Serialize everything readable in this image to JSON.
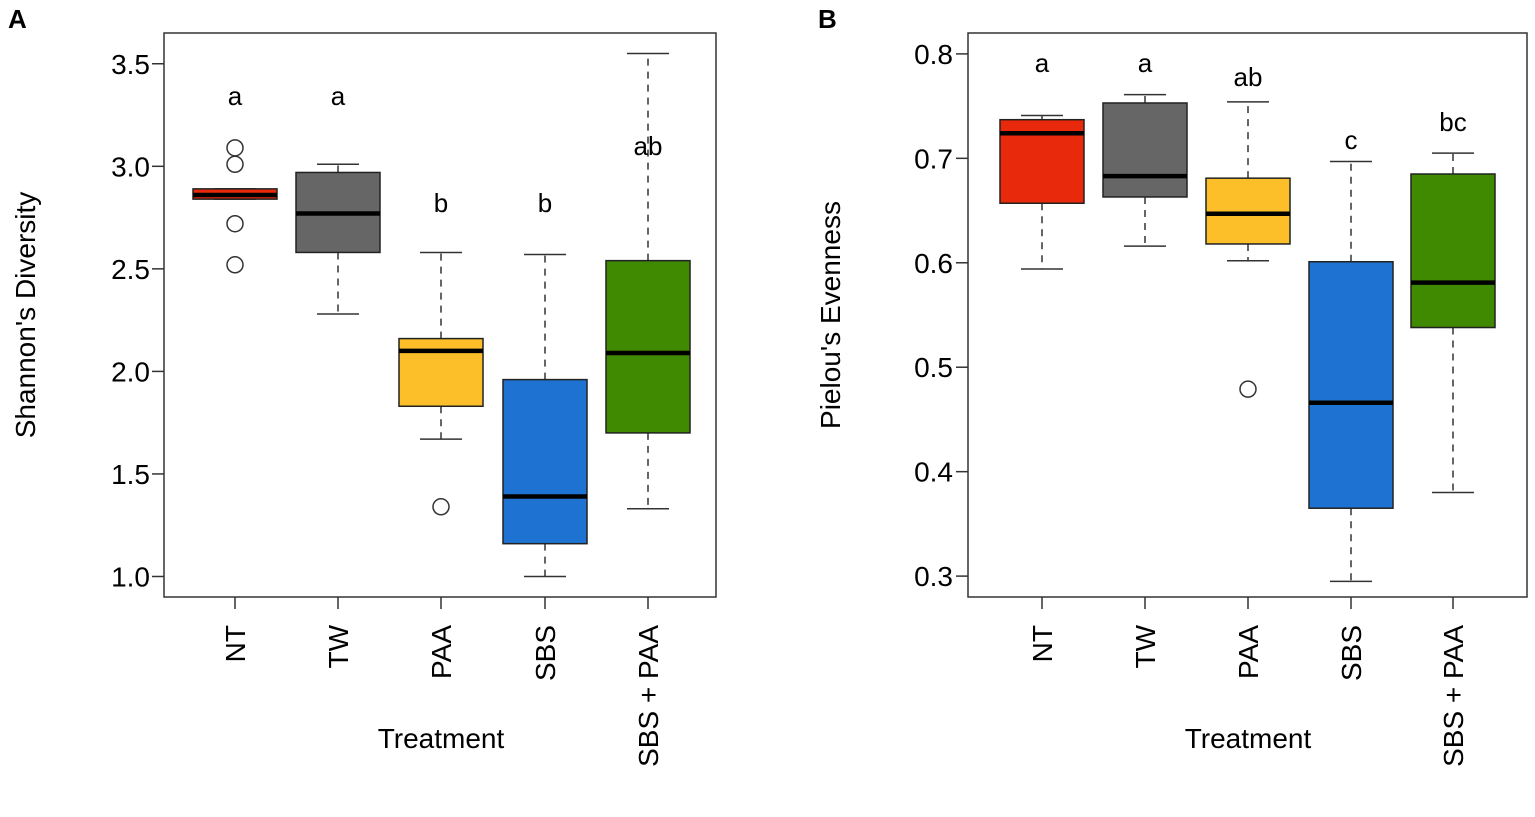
{
  "chart_data": [
    {
      "type": "boxplot",
      "panel_label": "A",
      "xlabel": "Treatment",
      "ylabel": "Shannon's Diversity",
      "ylim": [
        0.9,
        3.65
      ],
      "yticks": [
        "1.0",
        "1.5",
        "2.0",
        "2.5",
        "3.0",
        "3.5"
      ],
      "categories": [
        "NT",
        "TW",
        "PAA",
        "SBS",
        "SBS + PAA"
      ],
      "groups": [
        {
          "name": "NT",
          "color": "#e8290b",
          "whisker_low": 2.84,
          "q1": 2.84,
          "median": 2.86,
          "q3": 2.89,
          "whisker_high": 2.89,
          "outliers": [
            3.09,
            3.01,
            2.72,
            2.52
          ],
          "letter": "a"
        },
        {
          "name": "TW",
          "color": "#666666",
          "whisker_low": 2.28,
          "q1": 2.58,
          "median": 2.77,
          "q3": 2.97,
          "whisker_high": 3.01,
          "outliers": [],
          "letter": "a"
        },
        {
          "name": "PAA",
          "color": "#fcbf2a",
          "whisker_low": 1.67,
          "q1": 1.83,
          "median": 2.1,
          "q3": 2.16,
          "whisker_high": 2.58,
          "outliers": [
            1.34
          ],
          "letter": "b"
        },
        {
          "name": "SBS",
          "color": "#1e73d2",
          "whisker_low": 1.0,
          "q1": 1.16,
          "median": 1.39,
          "q3": 1.96,
          "whisker_high": 2.57,
          "outliers": [],
          "letter": "b"
        },
        {
          "name": "SBS + PAA",
          "color": "#3f8a00",
          "whisker_low": 1.33,
          "q1": 1.7,
          "median": 2.09,
          "q3": 2.54,
          "whisker_high": 3.55,
          "outliers": [],
          "letter": "ab"
        }
      ]
    },
    {
      "type": "boxplot",
      "panel_label": "B",
      "xlabel": "Treatment",
      "ylabel": "Pielou's Evenness",
      "ylim": [
        0.28,
        0.82
      ],
      "yticks": [
        "0.3",
        "0.4",
        "0.5",
        "0.6",
        "0.7",
        "0.8"
      ],
      "categories": [
        "NT",
        "TW",
        "PAA",
        "SBS",
        "SBS + PAA"
      ],
      "groups": [
        {
          "name": "NT",
          "color": "#e8290b",
          "whisker_low": 0.594,
          "q1": 0.657,
          "median": 0.724,
          "q3": 0.737,
          "whisker_high": 0.741,
          "outliers": [],
          "letter": "a"
        },
        {
          "name": "TW",
          "color": "#666666",
          "whisker_low": 0.616,
          "q1": 0.663,
          "median": 0.683,
          "q3": 0.753,
          "whisker_high": 0.761,
          "outliers": [],
          "letter": "a"
        },
        {
          "name": "PAA",
          "color": "#fcbf2a",
          "whisker_low": 0.602,
          "q1": 0.618,
          "median": 0.647,
          "q3": 0.681,
          "whisker_high": 0.754,
          "outliers": [
            0.479
          ],
          "letter": "ab"
        },
        {
          "name": "SBS",
          "color": "#1e73d2",
          "whisker_low": 0.295,
          "q1": 0.365,
          "median": 0.466,
          "q3": 0.601,
          "whisker_high": 0.697,
          "outliers": [],
          "letter": "c"
        },
        {
          "name": "SBS + PAA",
          "color": "#3f8a00",
          "whisker_low": 0.38,
          "q1": 0.538,
          "median": 0.581,
          "q3": 0.685,
          "whisker_high": 0.705,
          "outliers": [],
          "letter": "bc"
        }
      ]
    }
  ]
}
